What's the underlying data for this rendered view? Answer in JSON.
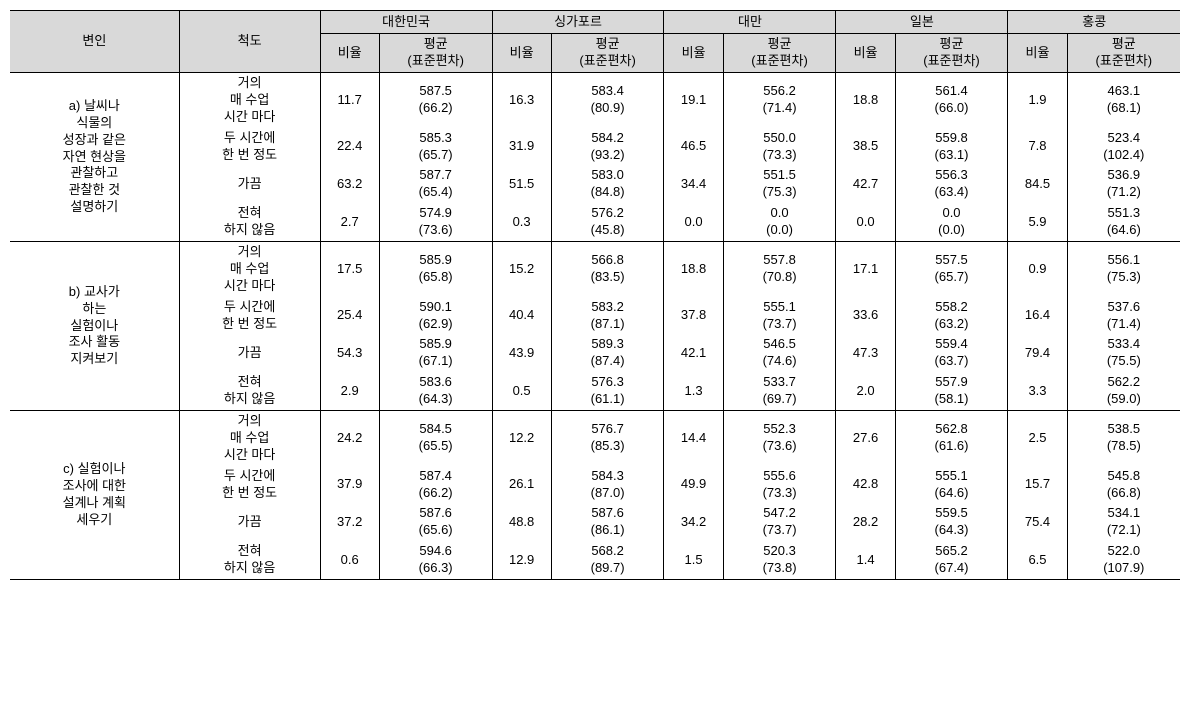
{
  "header": {
    "var": "변인",
    "scale": "척도",
    "countries": [
      "대한민국",
      "싱가포르",
      "대만",
      "일본",
      "홍콩"
    ],
    "ratio": "비율",
    "mean_line1": "평균",
    "mean_line2": "(표준편차)"
  },
  "scales": {
    "s1_l1": "거의",
    "s1_l2": "매 수업",
    "s1_l3": "시간 마다",
    "s2_l1": "두 시간에",
    "s2_l2": "한 번 정도",
    "s3": "가끔",
    "s4_l1": "전혀",
    "s4_l2": "하지 않음"
  },
  "groups": [
    {
      "label_lines": [
        "a) 날씨나",
        "식물의",
        "성장과 같은",
        "자연 현상을",
        "관찰하고",
        "관찰한 것",
        "설명하기"
      ],
      "rows": [
        {
          "r": [
            "11.7",
            "16.3",
            "19.1",
            "18.8",
            "1.9"
          ],
          "m": [
            "587.5",
            "583.4",
            "556.2",
            "561.4",
            "463.1"
          ],
          "sd": [
            "(66.2)",
            "(80.9)",
            "(71.4)",
            "(66.0)",
            "(68.1)"
          ]
        },
        {
          "r": [
            "22.4",
            "31.9",
            "46.5",
            "38.5",
            "7.8"
          ],
          "m": [
            "585.3",
            "584.2",
            "550.0",
            "559.8",
            "523.4"
          ],
          "sd": [
            "(65.7)",
            "(93.2)",
            "(73.3)",
            "(63.1)",
            "(102.4)"
          ]
        },
        {
          "r": [
            "63.2",
            "51.5",
            "34.4",
            "42.7",
            "84.5"
          ],
          "m": [
            "587.7",
            "583.0",
            "551.5",
            "556.3",
            "536.9"
          ],
          "sd": [
            "(65.4)",
            "(84.8)",
            "(75.3)",
            "(63.4)",
            "(71.2)"
          ]
        },
        {
          "r": [
            "2.7",
            "0.3",
            "0.0",
            "0.0",
            "5.9"
          ],
          "m": [
            "574.9",
            "576.2",
            "0.0",
            "0.0",
            "551.3"
          ],
          "sd": [
            "(73.6)",
            "(45.8)",
            "(0.0)",
            "(0.0)",
            "(64.6)"
          ]
        }
      ]
    },
    {
      "label_lines": [
        "b) 교사가",
        "하는",
        "실험이나",
        "조사 활동",
        "지켜보기"
      ],
      "rows": [
        {
          "r": [
            "17.5",
            "15.2",
            "18.8",
            "17.1",
            "0.9"
          ],
          "m": [
            "585.9",
            "566.8",
            "557.8",
            "557.5",
            "556.1"
          ],
          "sd": [
            "(65.8)",
            "(83.5)",
            "(70.8)",
            "(65.7)",
            "(75.3)"
          ]
        },
        {
          "r": [
            "25.4",
            "40.4",
            "37.8",
            "33.6",
            "16.4"
          ],
          "m": [
            "590.1",
            "583.2",
            "555.1",
            "558.2",
            "537.6"
          ],
          "sd": [
            "(62.9)",
            "(87.1)",
            "(73.7)",
            "(63.2)",
            "(71.4)"
          ]
        },
        {
          "r": [
            "54.3",
            "43.9",
            "42.1",
            "47.3",
            "79.4"
          ],
          "m": [
            "585.9",
            "589.3",
            "546.5",
            "559.4",
            "533.4"
          ],
          "sd": [
            "(67.1)",
            "(87.4)",
            "(74.6)",
            "(63.7)",
            "(75.5)"
          ]
        },
        {
          "r": [
            "2.9",
            "0.5",
            "1.3",
            "2.0",
            "3.3"
          ],
          "m": [
            "583.6",
            "576.3",
            "533.7",
            "557.9",
            "562.2"
          ],
          "sd": [
            "(64.3)",
            "(61.1)",
            "(69.7)",
            "(58.1)",
            "(59.0)"
          ]
        }
      ]
    },
    {
      "label_lines": [
        "c) 실험이나",
        "조사에 대한",
        "설계나 계획",
        "세우기"
      ],
      "rows": [
        {
          "r": [
            "24.2",
            "12.2",
            "14.4",
            "27.6",
            "2.5"
          ],
          "m": [
            "584.5",
            "576.7",
            "552.3",
            "562.8",
            "538.5"
          ],
          "sd": [
            "(65.5)",
            "(85.3)",
            "(73.6)",
            "(61.6)",
            "(78.5)"
          ]
        },
        {
          "r": [
            "37.9",
            "26.1",
            "49.9",
            "42.8",
            "15.7"
          ],
          "m": [
            "587.4",
            "584.3",
            "555.6",
            "555.1",
            "545.8"
          ],
          "sd": [
            "(66.2)",
            "(87.0)",
            "(73.3)",
            "(64.6)",
            "(66.8)"
          ]
        },
        {
          "r": [
            "37.2",
            "48.8",
            "34.2",
            "28.2",
            "75.4"
          ],
          "m": [
            "587.6",
            "587.6",
            "547.2",
            "559.5",
            "534.1"
          ],
          "sd": [
            "(65.6)",
            "(86.1)",
            "(73.7)",
            "(64.3)",
            "(72.1)"
          ]
        },
        {
          "r": [
            "0.6",
            "12.9",
            "1.5",
            "1.4",
            "6.5"
          ],
          "m": [
            "594.6",
            "568.2",
            "520.3",
            "565.2",
            "522.0"
          ],
          "sd": [
            "(66.3)",
            "(89.7)",
            "(73.8)",
            "(67.4)",
            "(107.9)"
          ]
        }
      ]
    }
  ]
}
